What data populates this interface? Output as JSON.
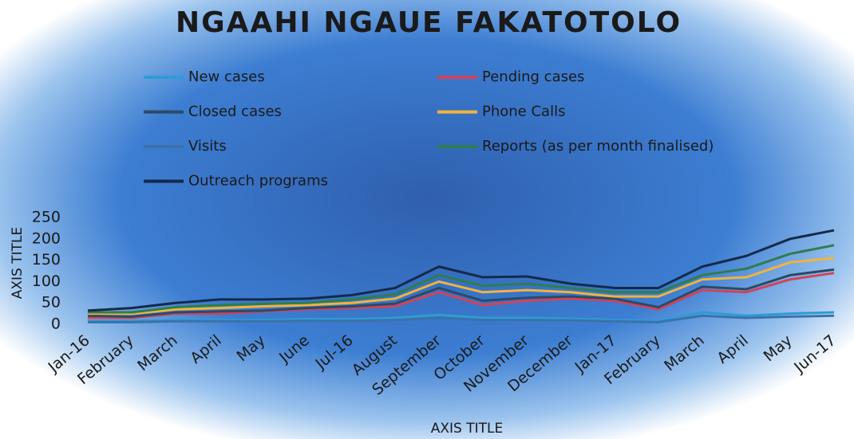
{
  "chart_data": {
    "type": "line",
    "title": "NGAAHI NGAUE FAKATOTOLO",
    "x_label": "AXIS TITLE",
    "y_label": "AXIS TITLE",
    "categories": [
      "Jan-16",
      "February",
      "March",
      "April",
      "May",
      "June",
      "Jul-16",
      "August",
      "September",
      "October",
      "November",
      "December",
      "Jan-17",
      "February",
      "March",
      "April",
      "May",
      "Jun-17"
    ],
    "ylim": [
      0,
      250
    ],
    "yticks": [
      0,
      50,
      100,
      150,
      200,
      250
    ],
    "series": [
      {
        "name": "New cases",
        "color": "#2e9bd6",
        "values": [
          8,
          8,
          10,
          10,
          10,
          12,
          12,
          15,
          22,
          15,
          15,
          13,
          10,
          8,
          28,
          20,
          25,
          28
        ]
      },
      {
        "name": "Pending cases",
        "color": "#d0435a",
        "values": [
          15,
          15,
          25,
          25,
          30,
          35,
          38,
          42,
          75,
          45,
          55,
          60,
          55,
          35,
          80,
          75,
          105,
          120
        ]
      },
      {
        "name": "Closed cases",
        "color": "#2b4a66",
        "values": [
          20,
          18,
          28,
          30,
          32,
          38,
          42,
          48,
          85,
          55,
          62,
          65,
          60,
          40,
          88,
          82,
          115,
          128
        ]
      },
      {
        "name": "Phone Calls",
        "color": "#f2b33d",
        "values": [
          25,
          25,
          35,
          38,
          42,
          45,
          50,
          60,
          100,
          75,
          80,
          75,
          65,
          65,
          105,
          110,
          145,
          155
        ]
      },
      {
        "name": "Visits",
        "color": "#3a72a8",
        "values": [
          5,
          5,
          7,
          7,
          7,
          8,
          8,
          10,
          15,
          10,
          10,
          9,
          7,
          5,
          20,
          15,
          18,
          20
        ]
      },
      {
        "name": "Reports (as per month finalised)",
        "color": "#2e7d4f",
        "values": [
          28,
          28,
          40,
          45,
          48,
          50,
          58,
          70,
          115,
          90,
          95,
          85,
          75,
          75,
          115,
          130,
          165,
          185
        ]
      },
      {
        "name": "Outreach programs",
        "color": "#142a4a",
        "values": [
          32,
          38,
          50,
          58,
          58,
          60,
          68,
          85,
          135,
          110,
          112,
          95,
          85,
          85,
          135,
          160,
          200,
          220
        ]
      }
    ]
  }
}
